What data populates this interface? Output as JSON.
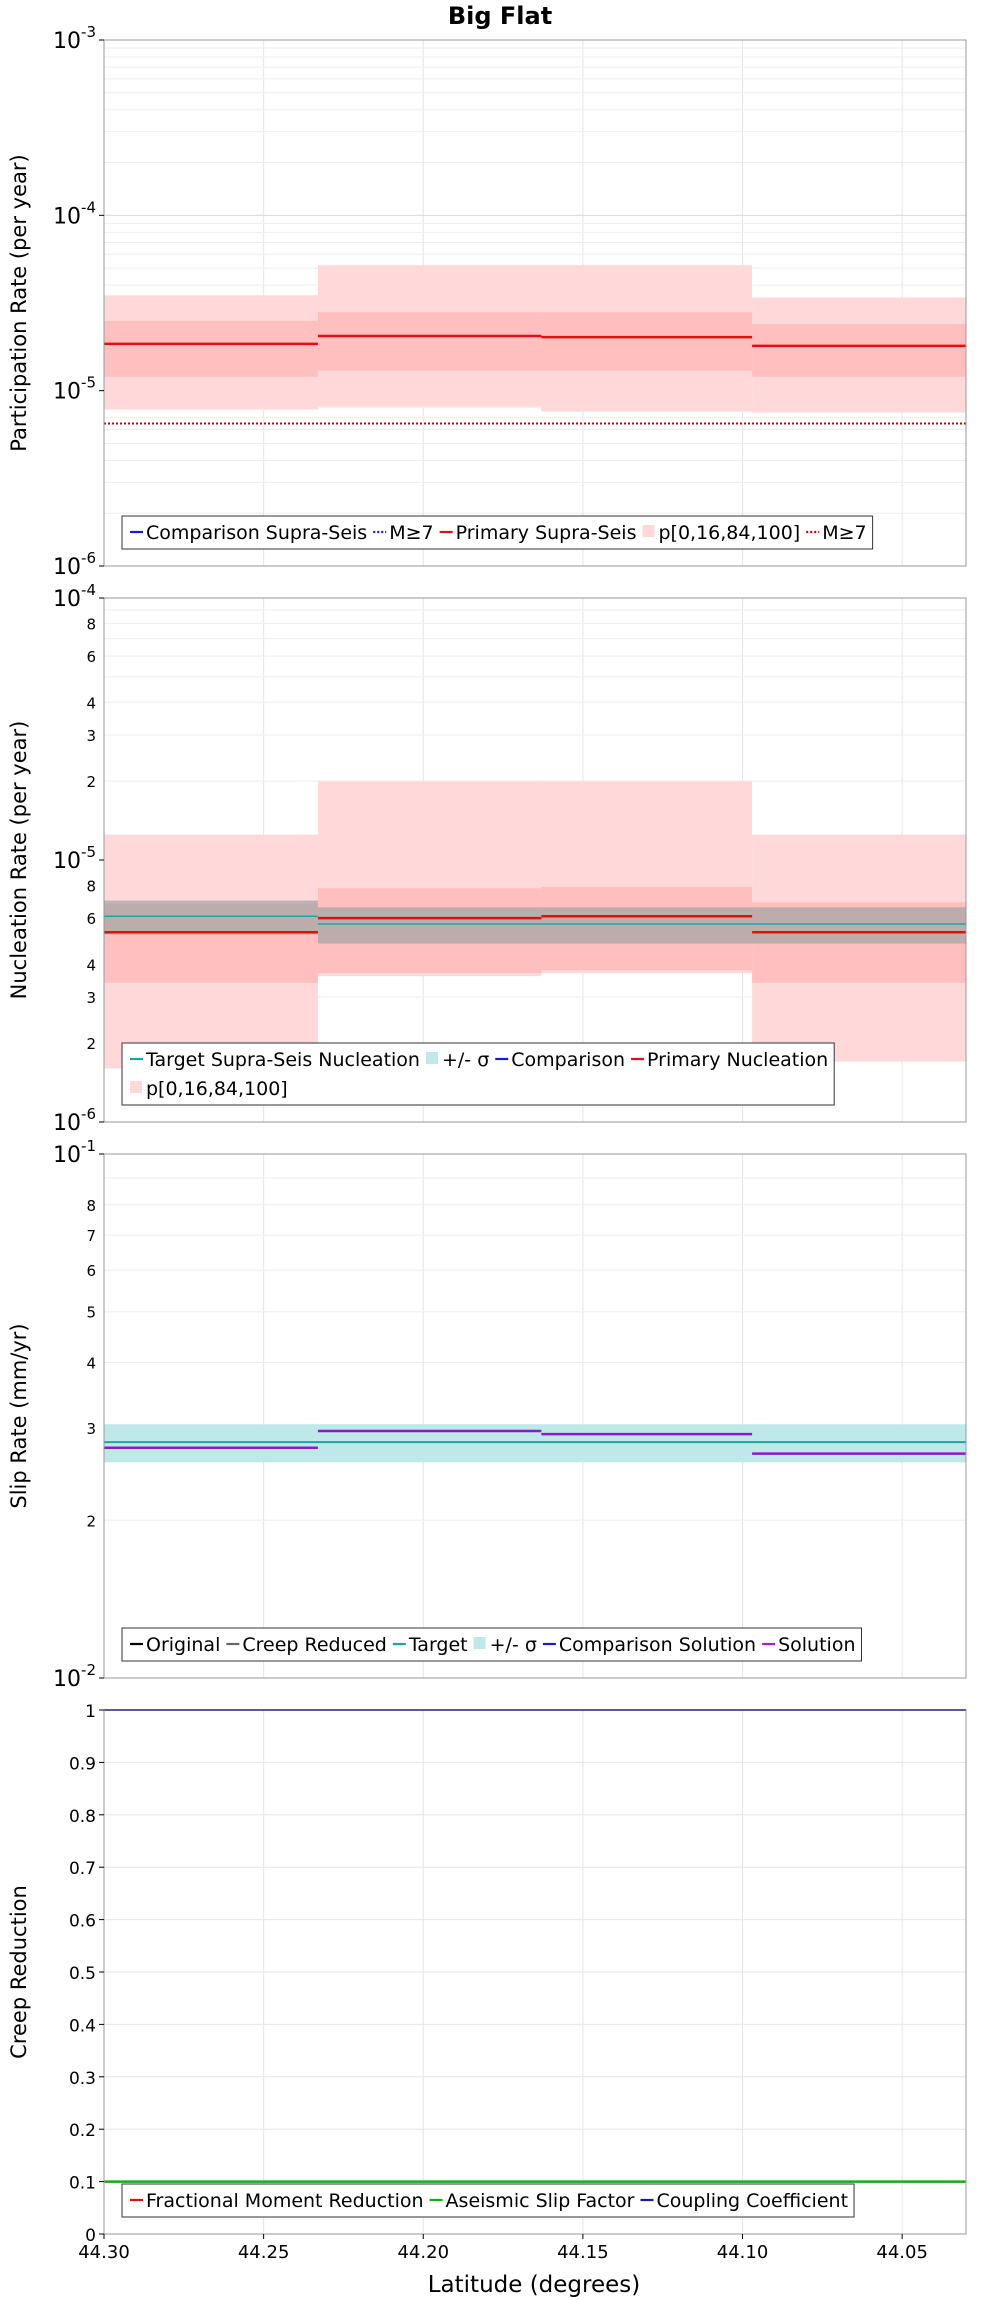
{
  "figure_title": "Big Flat",
  "x_axis": {
    "label": "Latitude (degrees)",
    "range": [
      44.3,
      44.03
    ],
    "ticks": [
      44.3,
      44.25,
      44.2,
      44.15,
      44.1,
      44.05
    ],
    "tick_labels": [
      "44.30",
      "44.25",
      "44.20",
      "44.15",
      "44.10",
      "44.05"
    ]
  },
  "chart_data": [
    {
      "type": "line",
      "ylabel": "Participation Rate (per year)",
      "yscale": "log",
      "ylim": [
        1e-06,
        0.001
      ],
      "grid": true,
      "legend_position": "bottom",
      "major_ticks": [
        {
          "value": 0.001,
          "base": "10",
          "exp": "-3"
        },
        {
          "value": 0.0001,
          "base": "10",
          "exp": "-4"
        },
        {
          "value": 1e-05,
          "base": "10",
          "exp": "-5"
        },
        {
          "value": 1e-06,
          "base": "10",
          "exp": "-6"
        }
      ],
      "minor_labels": [],
      "bands": [
        {
          "color": "#ffd9d9",
          "segments": [
            {
              "x0": 44.3,
              "x1": 44.233,
              "lo": 7.8e-06,
              "hi": 3.5e-05
            },
            {
              "x0": 44.233,
              "x1": 44.163,
              "lo": 8.1e-06,
              "hi": 5.2e-05
            },
            {
              "x0": 44.163,
              "x1": 44.097,
              "lo": 7.6e-06,
              "hi": 5.2e-05
            },
            {
              "x0": 44.097,
              "x1": 44.03,
              "lo": 7.5e-06,
              "hi": 3.4e-05
            }
          ]
        },
        {
          "color": "#ffbfbf",
          "segments": [
            {
              "x0": 44.3,
              "x1": 44.233,
              "lo": 1.2e-05,
              "hi": 2.5e-05
            },
            {
              "x0": 44.233,
              "x1": 44.163,
              "lo": 1.3e-05,
              "hi": 2.8e-05
            },
            {
              "x0": 44.163,
              "x1": 44.097,
              "lo": 1.3e-05,
              "hi": 2.8e-05
            },
            {
              "x0": 44.097,
              "x1": 44.03,
              "lo": 1.2e-05,
              "hi": 2.4e-05
            }
          ]
        }
      ],
      "series": [
        {
          "name": "M≥7",
          "color": "#1a1ad6",
          "dash": "2,2",
          "width": 1.5,
          "segments": [
            {
              "x0": 44.3,
              "x1": 44.03,
              "y": 6.5e-06
            }
          ]
        },
        {
          "name": "M≥7",
          "color": "#cc0000",
          "dash": "2,2",
          "width": 2,
          "segments": [
            {
              "x0": 44.3,
              "x1": 44.03,
              "y": 6.5e-06
            }
          ]
        },
        {
          "name": "Primary Supra-Seis",
          "color": "#e01010",
          "dash": "",
          "width": 2.5,
          "segments": [
            {
              "x0": 44.3,
              "x1": 44.233,
              "y": 1.85e-05
            },
            {
              "x0": 44.233,
              "x1": 44.163,
              "y": 2.05e-05
            },
            {
              "x0": 44.163,
              "x1": 44.097,
              "y": 2.02e-05
            },
            {
              "x0": 44.097,
              "x1": 44.03,
              "y": 1.8e-05
            }
          ]
        }
      ],
      "legend": {
        "rows": [
          [
            {
              "label": "Comparison Supra-Seis",
              "kind": "line",
              "color": "#1a1ad6",
              "dash": ""
            },
            {
              "label": "M≥7",
              "kind": "line",
              "color": "#1a1ad6",
              "dash": "2,2"
            },
            {
              "label": "Primary Supra-Seis",
              "kind": "line",
              "color": "#e01010",
              "dash": ""
            },
            {
              "label": "p[0,16,84,100]",
              "kind": "box",
              "color": "#ffd9d9",
              "dash": ""
            },
            {
              "label": "M≥7",
              "kind": "line",
              "color": "#cc0000",
              "dash": "2,2"
            }
          ]
        ]
      }
    },
    {
      "type": "line",
      "ylabel": "Nucleation Rate (per year)",
      "yscale": "log",
      "ylim": [
        1e-06,
        0.0001
      ],
      "grid": true,
      "legend_position": "bottom",
      "major_ticks": [
        {
          "value": 0.0001,
          "base": "10",
          "exp": "-4"
        },
        {
          "value": 1e-05,
          "base": "10",
          "exp": "-5"
        },
        {
          "value": 1e-06,
          "base": "10",
          "exp": "-6"
        }
      ],
      "minor_labels": [
        {
          "value": 8e-05,
          "label": "8"
        },
        {
          "value": 6e-05,
          "label": "6"
        },
        {
          "value": 4e-05,
          "label": "4"
        },
        {
          "value": 3e-05,
          "label": "3"
        },
        {
          "value": 2e-05,
          "label": "2"
        },
        {
          "value": 8e-06,
          "label": "8"
        },
        {
          "value": 6e-06,
          "label": "6"
        },
        {
          "value": 4e-06,
          "label": "4"
        },
        {
          "value": 3e-06,
          "label": "3"
        },
        {
          "value": 2e-06,
          "label": "2"
        }
      ],
      "bands": [
        {
          "color": "#ffd9d9",
          "segments": [
            {
              "x0": 44.3,
              "x1": 44.233,
              "lo": 1.6e-06,
              "hi": 1.25e-05
            },
            {
              "x0": 44.233,
              "x1": 44.163,
              "lo": 3.6e-06,
              "hi": 2e-05
            },
            {
              "x0": 44.163,
              "x1": 44.097,
              "lo": 3.7e-06,
              "hi": 2e-05
            },
            {
              "x0": 44.097,
              "x1": 44.03,
              "lo": 1.7e-06,
              "hi": 1.25e-05
            }
          ]
        },
        {
          "color": "#ffbfbf",
          "segments": [
            {
              "x0": 44.3,
              "x1": 44.233,
              "lo": 3.4e-06,
              "hi": 6.8e-06
            },
            {
              "x0": 44.233,
              "x1": 44.163,
              "lo": 3.7e-06,
              "hi": 7.8e-06
            },
            {
              "x0": 44.163,
              "x1": 44.097,
              "lo": 3.8e-06,
              "hi": 7.9e-06
            },
            {
              "x0": 44.097,
              "x1": 44.03,
              "lo": 3.4e-06,
              "hi": 6.9e-06
            }
          ]
        },
        {
          "color": "#a6a6a6",
          "opacity": 0.75,
          "segments": [
            {
              "x0": 44.3,
              "x1": 44.233,
              "lo": 5.2e-06,
              "hi": 7e-06
            },
            {
              "x0": 44.233,
              "x1": 44.03,
              "lo": 4.8e-06,
              "hi": 6.6e-06
            }
          ]
        }
      ],
      "series": [
        {
          "name": "Target Supra-Seis Nucleation",
          "color": "#1aa6a6",
          "dash": "",
          "width": 1.5,
          "segments": [
            {
              "x0": 44.3,
              "x1": 44.233,
              "y": 6.1e-06
            },
            {
              "x0": 44.233,
              "x1": 44.03,
              "y": 5.7e-06
            }
          ]
        },
        {
          "name": "Primary Nucleation",
          "color": "#e01010",
          "dash": "",
          "width": 2.5,
          "segments": [
            {
              "x0": 44.3,
              "x1": 44.233,
              "y": 5.3e-06
            },
            {
              "x0": 44.233,
              "x1": 44.163,
              "y": 6e-06
            },
            {
              "x0": 44.163,
              "x1": 44.097,
              "y": 6.1e-06
            },
            {
              "x0": 44.097,
              "x1": 44.03,
              "y": 5.3e-06
            }
          ]
        }
      ],
      "legend": {
        "rows": [
          [
            {
              "label": "Target Supra-Seis Nucleation",
              "kind": "line",
              "color": "#1aa6a6",
              "dash": ""
            },
            {
              "label": "+/- σ",
              "kind": "box",
              "color": "#bfe8e8",
              "dash": ""
            },
            {
              "label": "Comparison",
              "kind": "line",
              "color": "#1a1ad6",
              "dash": ""
            },
            {
              "label": "Primary Nucleation",
              "kind": "line",
              "color": "#e01010",
              "dash": ""
            }
          ],
          [
            {
              "label": "p[0,16,84,100]",
              "kind": "box",
              "color": "#ffd9d9",
              "dash": ""
            }
          ]
        ]
      }
    },
    {
      "type": "line",
      "ylabel": "Slip Rate (mm/yr)",
      "yscale": "log",
      "ylim": [
        0.01,
        0.1
      ],
      "grid": true,
      "legend_position": "bottom",
      "major_ticks": [
        {
          "value": 0.1,
          "base": "10",
          "exp": "-1"
        },
        {
          "value": 0.01,
          "base": "10",
          "exp": "-2"
        }
      ],
      "minor_labels": [
        {
          "value": 0.08,
          "label": "8"
        },
        {
          "value": 0.07,
          "label": "7"
        },
        {
          "value": 0.06,
          "label": "6"
        },
        {
          "value": 0.05,
          "label": "5"
        },
        {
          "value": 0.04,
          "label": "4"
        },
        {
          "value": 0.03,
          "label": "3"
        },
        {
          "value": 0.02,
          "label": "2"
        }
      ],
      "bands": [
        {
          "color": "#bfe8e8",
          "segments": [
            {
              "x0": 44.3,
              "x1": 44.03,
              "lo": 0.0258,
              "hi": 0.0305
            }
          ]
        }
      ],
      "series": [
        {
          "name": "Target",
          "color": "#1aa6a6",
          "dash": "",
          "width": 2,
          "segments": [
            {
              "x0": 44.3,
              "x1": 44.03,
              "y": 0.0282
            }
          ]
        },
        {
          "name": "Solution",
          "color": "#8c1ac8",
          "dash": "",
          "width": 2.5,
          "segments": [
            {
              "x0": 44.3,
              "x1": 44.233,
              "y": 0.0275
            },
            {
              "x0": 44.233,
              "x1": 44.163,
              "y": 0.0296
            },
            {
              "x0": 44.163,
              "x1": 44.097,
              "y": 0.0292
            },
            {
              "x0": 44.097,
              "x1": 44.03,
              "y": 0.0268
            }
          ]
        }
      ],
      "legend": {
        "rows": [
          [
            {
              "label": "Original",
              "kind": "line",
              "color": "#000000",
              "dash": ""
            },
            {
              "label": "Creep Reduced",
              "kind": "line",
              "color": "#666666",
              "dash": ""
            },
            {
              "label": "Target",
              "kind": "line",
              "color": "#1aa6a6",
              "dash": ""
            },
            {
              "label": "+/- σ",
              "kind": "box",
              "color": "#bfe8e8",
              "dash": ""
            },
            {
              "label": "Comparison Solution",
              "kind": "line",
              "color": "#1a1ad6",
              "dash": ""
            },
            {
              "label": "Solution",
              "kind": "line",
              "color": "#b01ad6",
              "dash": ""
            }
          ]
        ]
      }
    },
    {
      "type": "line",
      "ylabel": "Creep Reduction",
      "yscale": "linear",
      "ylim": [
        0,
        1
      ],
      "grid": true,
      "legend_position": "bottom",
      "major_ticks": [
        {
          "value": 1,
          "label": "1"
        },
        {
          "value": 0.9,
          "label": "0.9"
        },
        {
          "value": 0.8,
          "label": "0.8"
        },
        {
          "value": 0.7,
          "label": "0.7"
        },
        {
          "value": 0.6,
          "label": "0.6"
        },
        {
          "value": 0.5,
          "label": "0.5"
        },
        {
          "value": 0.4,
          "label": "0.4"
        },
        {
          "value": 0.3,
          "label": "0.3"
        },
        {
          "value": 0.2,
          "label": "0.2"
        },
        {
          "value": 0.1,
          "label": "0.1"
        },
        {
          "value": 0,
          "label": "0"
        }
      ],
      "minor_labels": [],
      "bands": [],
      "series": [
        {
          "name": "Coupling Coefficient",
          "color": "#1a1a9c",
          "dash": "",
          "width": 2,
          "segments": [
            {
              "x0": 44.3,
              "x1": 44.03,
              "y": 1.0
            }
          ]
        },
        {
          "name": "Aseismic Slip Factor",
          "color": "#10b010",
          "dash": "",
          "width": 2.5,
          "segments": [
            {
              "x0": 44.3,
              "x1": 44.03,
              "y": 0.1
            }
          ]
        }
      ],
      "legend": {
        "rows": [
          [
            {
              "label": "Fractional Moment Reduction",
              "kind": "line",
              "color": "#e01010",
              "dash": ""
            },
            {
              "label": "Aseismic Slip Factor",
              "kind": "line",
              "color": "#10b010",
              "dash": ""
            },
            {
              "label": "Coupling Coefficient",
              "kind": "line",
              "color": "#1a1a9c",
              "dash": ""
            }
          ]
        ]
      }
    }
  ]
}
